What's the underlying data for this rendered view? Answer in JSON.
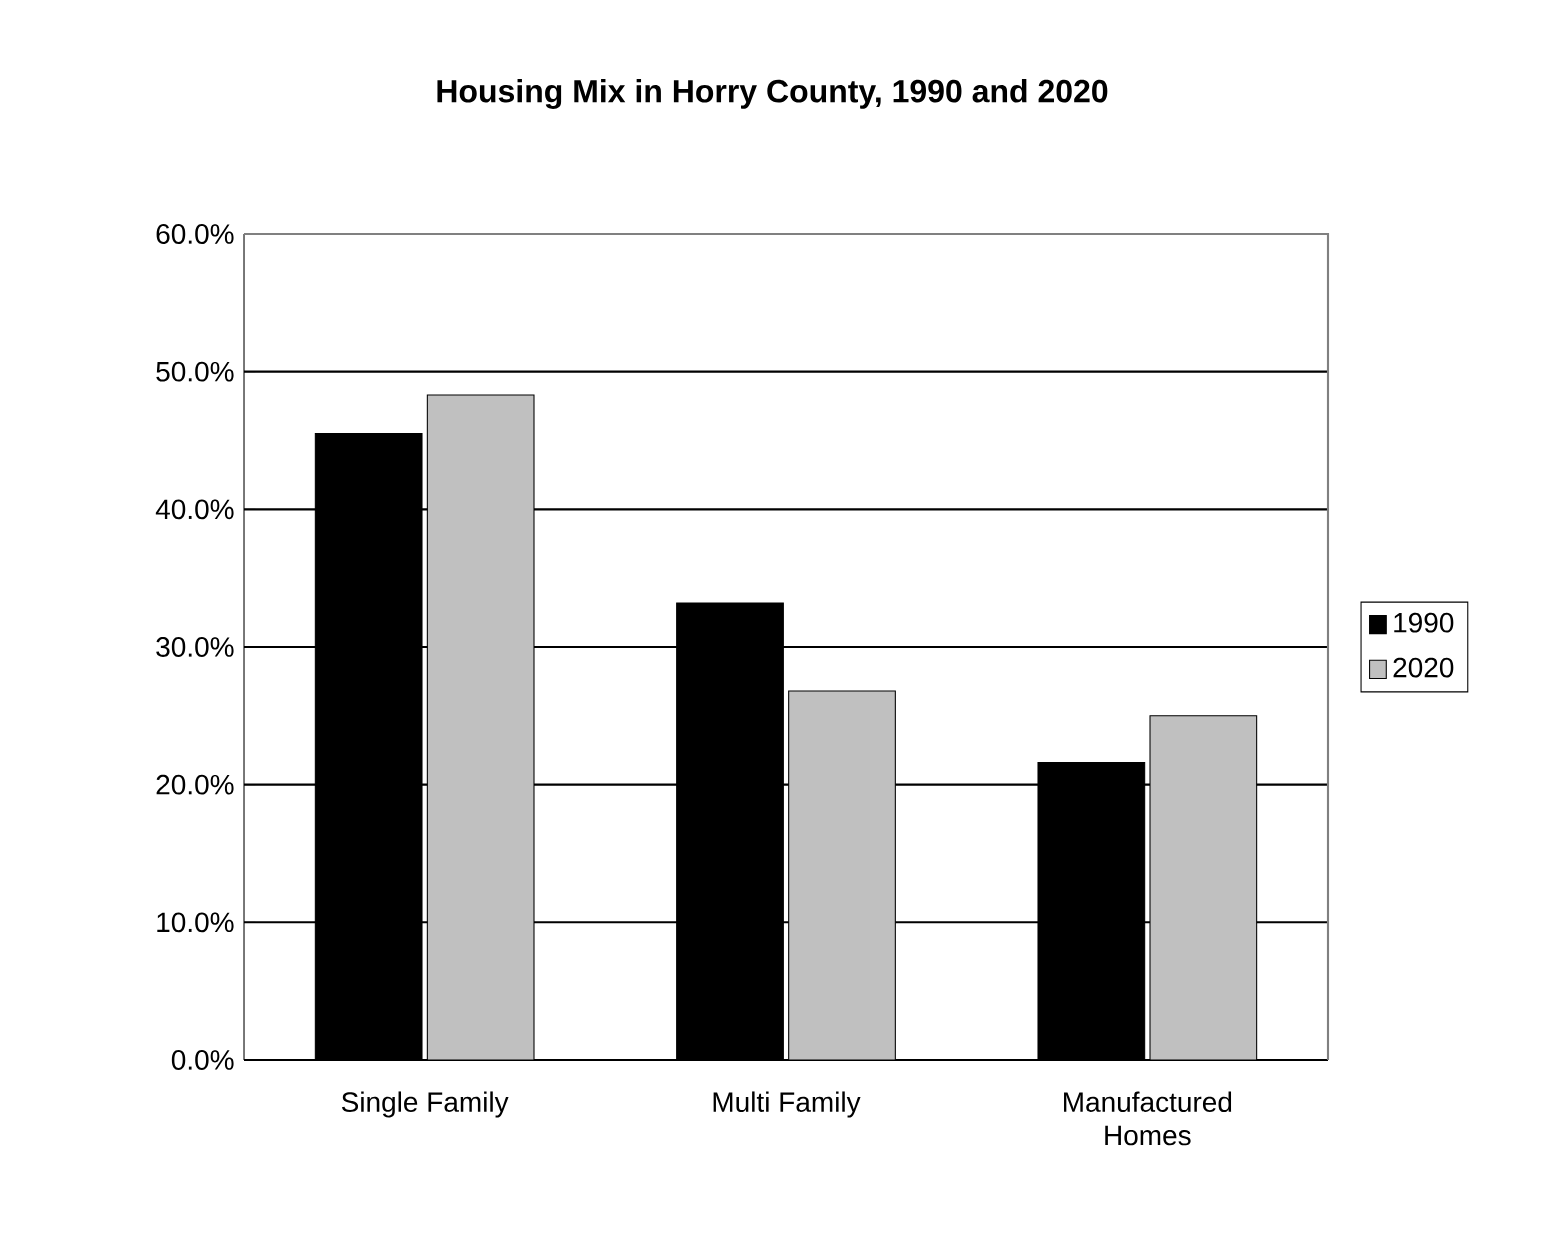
{
  "chart_data": {
    "type": "bar",
    "title": "Housing Mix in Horry County, 1990 and 2020",
    "categories": [
      "Single Family",
      "Multi Family",
      "Manufactured Homes"
    ],
    "series": [
      {
        "name": "1990",
        "color": "#000000",
        "values": [
          45.5,
          33.2,
          21.6
        ]
      },
      {
        "name": "2020",
        "color": "#c0c0c0",
        "values": [
          48.3,
          26.8,
          25.0
        ]
      }
    ],
    "ylim": [
      0,
      60
    ],
    "yticks": [
      {
        "value": 0,
        "label": "0.0%"
      },
      {
        "value": 10,
        "label": "10.0%"
      },
      {
        "value": 20,
        "label": "20.0%"
      },
      {
        "value": 30,
        "label": "30.0%"
      },
      {
        "value": 40,
        "label": "40.0%"
      },
      {
        "value": 50,
        "label": "50.0%"
      },
      {
        "value": 60,
        "label": "60.0%"
      }
    ],
    "grid": "y",
    "legend": "right"
  }
}
